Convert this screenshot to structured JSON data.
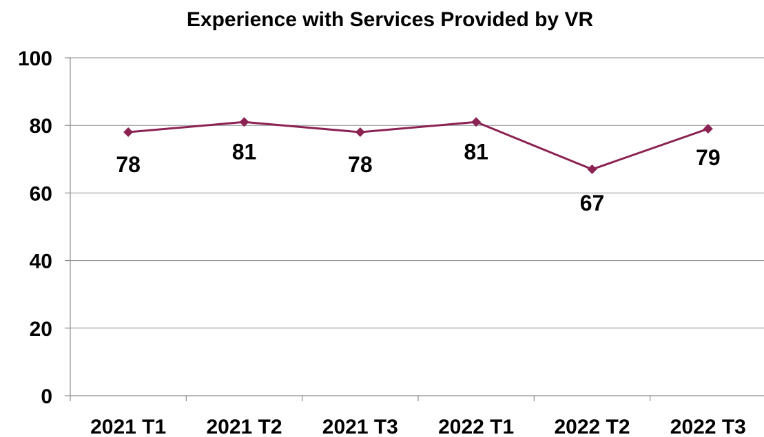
{
  "chart_data": {
    "type": "line",
    "title": "Experience with Services Provided by VR",
    "xlabel": "",
    "ylabel": "",
    "categories": [
      "2021 T1",
      "2021 T2",
      "2021 T3",
      "2022 T1",
      "2022 T2",
      "2022 T3"
    ],
    "series": [
      {
        "values": [
          78,
          81,
          78,
          81,
          67,
          79
        ],
        "color": "#8b2252",
        "marker": "diamond",
        "data_labels": [
          "78",
          "81",
          "78",
          "81",
          "67",
          "79"
        ]
      }
    ],
    "ylim": [
      0,
      100
    ],
    "yticks": [
      "0",
      "20",
      "40",
      "60",
      "80",
      "100"
    ],
    "grid": true,
    "legend": "none"
  }
}
